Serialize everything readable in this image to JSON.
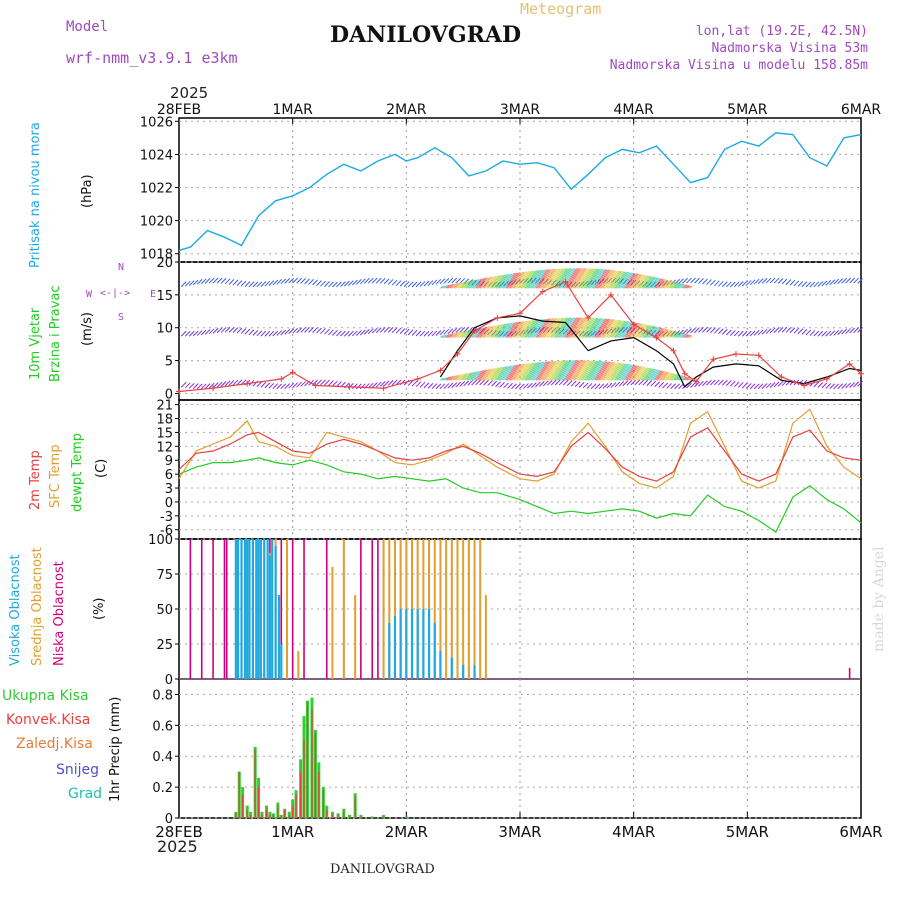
{
  "header": {
    "model_label": "Model",
    "model_name": "wrf-nmm_v3.9.1  e3km",
    "station": "DANILOVGRAD",
    "product": "Meteogram",
    "lonlat": "lon,lat (19.2E, 42.5N)",
    "elevation": "Nadmorska Visina 53m",
    "model_elevation": "Nadmorska Visina u modelu 158.85m",
    "year_top": "2025",
    "footer_station": "DANILOVGRAD",
    "watermark": "made by Angel"
  },
  "colors": {
    "pressure": "#1eaae6",
    "wind_speed": "#e84040",
    "wind_gust": "#000000",
    "temp2m": "#e84040",
    "sfc_temp": "#e0a030",
    "dewpoint": "#22cc22",
    "high_cloud": "#20a8e0",
    "mid_cloud": "#e0a030",
    "low_cloud": "#d0007a",
    "precip_total": "#33cc33",
    "precip_conv": "#e84040"
  },
  "chart_data": [
    {
      "type": "line",
      "id": "pressure",
      "ylabel_main": "Pritisak na nivou mora",
      "ylabel_unit": "(hPa)",
      "ylim": [
        1017.5,
        1026.2
      ],
      "yticks": [
        1018,
        1020,
        1022,
        1024,
        1026
      ],
      "x_days": [
        0,
        0.1,
        0.25,
        0.4,
        0.55,
        0.7,
        0.85,
        1.0,
        1.15,
        1.3,
        1.45,
        1.6,
        1.75,
        1.9,
        2.0,
        2.1,
        2.25,
        2.4,
        2.55,
        2.7,
        2.85,
        3.0,
        3.15,
        3.3,
        3.45,
        3.6,
        3.75,
        3.9,
        4.05,
        4.2,
        4.35,
        4.5,
        4.65,
        4.8,
        4.95,
        5.1,
        5.25,
        5.4,
        5.55,
        5.7,
        5.85,
        6.0
      ],
      "series": [
        {
          "name": "Pritisak",
          "values": [
            1018.2,
            1018.4,
            1019.4,
            1019.0,
            1018.5,
            1020.3,
            1021.2,
            1021.5,
            1022.0,
            1022.8,
            1023.4,
            1023.0,
            1023.6,
            1024.0,
            1023.6,
            1023.8,
            1024.4,
            1023.8,
            1022.7,
            1023.0,
            1023.6,
            1023.4,
            1023.5,
            1023.2,
            1021.9,
            1022.8,
            1023.8,
            1024.3,
            1024.1,
            1024.5,
            1023.4,
            1022.3,
            1022.6,
            1024.3,
            1024.8,
            1024.5,
            1025.3,
            1025.2,
            1023.8,
            1023.3,
            1025.0,
            1025.2
          ]
        }
      ]
    },
    {
      "type": "line",
      "id": "wind",
      "ylabel_main": "10m Vjetar",
      "ylabel_sub": "Brzina i Pravac",
      "ylabel_unit": "(m/s)",
      "compass": [
        "N",
        "W",
        "E",
        "S"
      ],
      "ylim": [
        -1,
        20
      ],
      "yticks": [
        0,
        5,
        10,
        15,
        20
      ],
      "x_days": [
        0,
        0.3,
        0.6,
        0.9,
        1.0,
        1.2,
        1.5,
        1.8,
        2.1,
        2.3,
        2.45,
        2.6,
        2.8,
        3.0,
        3.2,
        3.4,
        3.6,
        3.8,
        4.0,
        4.2,
        4.35,
        4.45,
        4.55,
        4.7,
        4.9,
        5.1,
        5.3,
        5.5,
        5.7,
        5.9,
        6.0
      ],
      "series": [
        {
          "name": "Brzina",
          "values": [
            0.3,
            0.8,
            1.5,
            2.2,
            3.2,
            1.2,
            1.0,
            0.8,
            2.2,
            3.5,
            6.0,
            9.5,
            11.5,
            12.2,
            15.5,
            17.0,
            11.5,
            15.0,
            10.5,
            8.5,
            6.5,
            3.0,
            1.8,
            5.2,
            6.0,
            5.8,
            2.5,
            1.2,
            2.2,
            4.5,
            3.0
          ]
        },
        {
          "name": "Udar",
          "values": [
            null,
            null,
            null,
            null,
            null,
            null,
            null,
            null,
            null,
            2.5,
            6.5,
            10.0,
            11.5,
            11.8,
            11.0,
            10.8,
            6.5,
            8.0,
            8.5,
            6.5,
            4.5,
            1.0,
            2.5,
            4.0,
            4.5,
            4.2,
            2.0,
            1.5,
            2.5,
            3.8,
            3.5
          ]
        }
      ]
    },
    {
      "type": "line",
      "id": "temperature",
      "ylabel": [
        "2m Temp",
        "SFC Temp",
        "dewpt Temp"
      ],
      "ylabel_unit": "(C)",
      "ylim": [
        -8,
        22
      ],
      "yticks": [
        -6,
        -3,
        0,
        3,
        6,
        9,
        12,
        15,
        18,
        21
      ],
      "x_days": [
        0,
        0.15,
        0.3,
        0.45,
        0.6,
        0.7,
        0.85,
        1.0,
        1.15,
        1.3,
        1.45,
        1.6,
        1.75,
        1.9,
        2.05,
        2.2,
        2.35,
        2.5,
        2.65,
        2.8,
        3.0,
        3.15,
        3.3,
        3.45,
        3.6,
        3.75,
        3.9,
        4.05,
        4.2,
        4.35,
        4.5,
        4.65,
        4.8,
        4.95,
        5.1,
        5.25,
        5.4,
        5.55,
        5.7,
        5.85,
        6.0
      ],
      "series": [
        {
          "name": "2m Temp",
          "values": [
            7.0,
            10.5,
            11.0,
            12.5,
            14.5,
            15.0,
            13.0,
            11.0,
            10.5,
            12.5,
            13.5,
            12.5,
            11.0,
            9.5,
            9.0,
            9.5,
            11.0,
            12.0,
            10.5,
            8.5,
            6.0,
            5.5,
            6.5,
            12.0,
            15.0,
            11.5,
            7.5,
            5.5,
            4.5,
            6.5,
            14.0,
            16.0,
            11.0,
            6.0,
            4.5,
            6.0,
            14.0,
            15.5,
            11.0,
            9.5,
            9.0
          ]
        },
        {
          "name": "SFC Temp",
          "values": [
            5.0,
            11.0,
            12.5,
            14.0,
            17.5,
            13.0,
            12.0,
            10.0,
            9.5,
            15.0,
            14.0,
            13.0,
            11.0,
            8.5,
            8.0,
            9.0,
            10.5,
            12.5,
            10.0,
            7.5,
            5.0,
            4.5,
            6.0,
            13.0,
            17.0,
            12.0,
            6.5,
            4.0,
            3.0,
            5.5,
            17.0,
            19.5,
            12.0,
            4.5,
            3.0,
            4.5,
            17.0,
            20.0,
            12.0,
            7.5,
            5.0
          ]
        },
        {
          "name": "dewpt Temp",
          "values": [
            6.0,
            7.5,
            8.5,
            8.5,
            9.0,
            9.5,
            8.5,
            8.0,
            9.0,
            8.0,
            6.5,
            6.0,
            5.0,
            5.5,
            5.0,
            4.5,
            5.0,
            3.0,
            2.0,
            2.0,
            0.5,
            -1.0,
            -2.5,
            -2.0,
            -2.5,
            -2.0,
            -1.5,
            -2.0,
            -3.5,
            -2.5,
            -3.0,
            1.5,
            -1.0,
            -2.0,
            -4.0,
            -6.5,
            1.0,
            3.5,
            0.5,
            -1.5,
            -4.5
          ]
        }
      ]
    },
    {
      "type": "bar",
      "id": "cloud",
      "ylabel": [
        "Visoka Oblacnost",
        "Srednja Oblacnost",
        "Niska Oblacnost"
      ],
      "ylabel_unit": "(%)",
      "ylim": [
        0,
        100
      ],
      "yticks": [
        0,
        25,
        50,
        75,
        100
      ],
      "low_cloud_times": [
        0.1,
        0.2,
        0.3,
        0.4,
        0.42,
        0.5,
        0.55,
        0.6,
        0.62,
        0.65,
        0.68,
        0.72,
        0.75,
        0.8,
        0.85,
        0.9,
        1.0,
        1.1,
        1.3,
        1.45,
        1.6,
        1.7,
        1.75,
        1.8,
        1.85,
        1.9,
        1.95,
        2.0,
        2.05,
        2.1,
        2.2,
        2.3,
        2.4,
        2.45,
        2.55,
        2.65,
        5.9
      ],
      "low_cloud_values": [
        100,
        100,
        100,
        100,
        100,
        100,
        100,
        100,
        100,
        100,
        100,
        100,
        100,
        100,
        100,
        100,
        100,
        100,
        100,
        100,
        100,
        100,
        100,
        100,
        100,
        100,
        100,
        100,
        100,
        100,
        100,
        100,
        100,
        100,
        100,
        50,
        8
      ],
      "mid_cloud_times": [
        0.6,
        0.65,
        0.7,
        0.8,
        0.85,
        0.95,
        1.05,
        1.35,
        1.45,
        1.55,
        1.8,
        1.85,
        1.9,
        1.95,
        2.0,
        2.05,
        2.1,
        2.15,
        2.2,
        2.25,
        2.3,
        2.35,
        2.4,
        2.45,
        2.5,
        2.55,
        2.6,
        2.65,
        2.7
      ],
      "mid_cloud_values": [
        100,
        100,
        100,
        90,
        100,
        100,
        20,
        80,
        100,
        60,
        100,
        100,
        100,
        100,
        100,
        100,
        100,
        100,
        100,
        100,
        100,
        100,
        100,
        100,
        100,
        100,
        100,
        100,
        60
      ],
      "high_cloud_times": [
        0.5,
        0.52,
        0.55,
        0.58,
        0.6,
        0.62,
        0.65,
        0.68,
        0.7,
        0.72,
        0.75,
        0.78,
        0.8,
        0.82,
        0.85,
        0.88,
        0.9,
        1.85,
        1.9,
        1.95,
        2.0,
        2.05,
        2.1,
        2.15,
        2.2,
        2.25,
        2.3,
        2.4,
        2.5,
        2.6
      ],
      "high_cloud_values": [
        100,
        100,
        100,
        100,
        100,
        100,
        100,
        100,
        100,
        100,
        100,
        100,
        88,
        100,
        95,
        60,
        25,
        40,
        45,
        50,
        50,
        50,
        50,
        50,
        50,
        40,
        20,
        15,
        10,
        10
      ]
    },
    {
      "type": "bar",
      "id": "precip",
      "legend": [
        "Ukupna Kisa",
        "Konvek.Kisa",
        "Zaledj.Kisa",
        "Snijeg",
        "Grad"
      ],
      "ylabel": "1hr Precip (mm)",
      "ylim": [
        0,
        0.9
      ],
      "yticks": [
        0,
        0.2,
        0.4,
        0.6,
        0.8
      ],
      "x_days": [
        0.5,
        0.53,
        0.56,
        0.6,
        0.63,
        0.67,
        0.7,
        0.73,
        0.77,
        0.8,
        0.83,
        0.87,
        0.9,
        0.93,
        0.97,
        1.0,
        1.03,
        1.07,
        1.1,
        1.13,
        1.17,
        1.2,
        1.23,
        1.27,
        1.3,
        1.35,
        1.4,
        1.45,
        1.5,
        1.55,
        1.6,
        1.7,
        1.8,
        2.0
      ],
      "total": [
        0.04,
        0.3,
        0.2,
        0.08,
        0.04,
        0.46,
        0.26,
        0.04,
        0.08,
        0.04,
        0.03,
        0.1,
        0.02,
        0.06,
        0.04,
        0.12,
        0.18,
        0.38,
        0.66,
        0.76,
        0.78,
        0.57,
        0.36,
        0.2,
        0.08,
        0.04,
        0.03,
        0.06,
        0.02,
        0.16,
        0.02,
        0.01,
        0.02,
        0.01
      ],
      "convective": [
        0.03,
        0.3,
        0.15,
        0.05,
        0.02,
        0.44,
        0.2,
        0.02,
        0.05,
        0.02,
        0.02,
        0.08,
        0.01,
        0.05,
        0.02,
        0.08,
        0.15,
        0.3,
        0.5,
        0.75,
        0.7,
        0.55,
        0.3,
        0.18,
        0.05,
        0.02,
        0.02,
        0.04,
        0.01,
        0.14,
        0.01,
        0.0,
        0.01,
        0.0
      ]
    }
  ],
  "xaxis": {
    "top_labels": [
      "28FEB",
      "1MAR",
      "2MAR",
      "3MAR",
      "4MAR",
      "5MAR",
      "6MAR"
    ],
    "bottom_labels": [
      "28FEB",
      "1MAR",
      "2MAR",
      "3MAR",
      "4MAR",
      "5MAR",
      "6MAR"
    ],
    "year_bottom": "2025",
    "range_days": [
      0,
      6
    ]
  }
}
